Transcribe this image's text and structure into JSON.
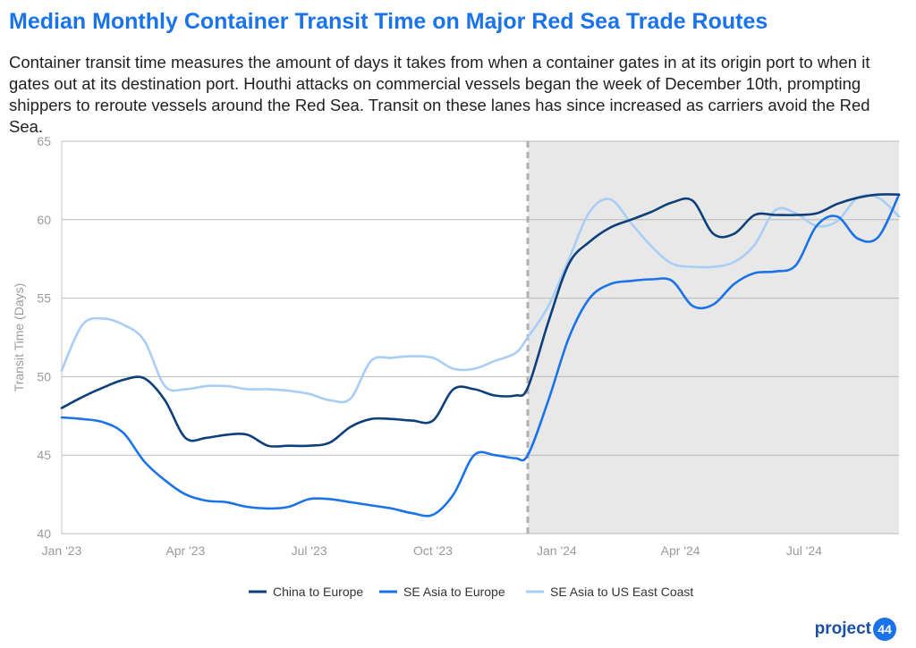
{
  "header": {
    "title": "Median Monthly Container Transit Time on Major Red Sea Trade Routes",
    "subtitle": "Container transit time measures the amount of days it takes from when a container gates in at its origin port to when it gates out at its destination port. Houthi attacks on commercial vessels began the week of December 10th, prompting shippers to reroute vessels around the Red Sea. Transit on these lanes has since increased as carriers avoid the Red Sea."
  },
  "brand": {
    "text": "project",
    "number": "44"
  },
  "chart_data": {
    "type": "line",
    "title": "Median Monthly Container Transit Time on Major Red Sea Trade Routes",
    "ylabel": "Transit Time (Days)",
    "ylim": [
      40,
      65
    ],
    "yticks": [
      40,
      45,
      50,
      55,
      60,
      65
    ],
    "xlim": [
      0,
      20.3
    ],
    "xticks": [
      {
        "x": 0,
        "label": "Jan '23"
      },
      {
        "x": 3,
        "label": "Apr '23"
      },
      {
        "x": 6,
        "label": "Jul '23"
      },
      {
        "x": 9,
        "label": "Oct '23"
      },
      {
        "x": 12,
        "label": "Jan '24"
      },
      {
        "x": 15,
        "label": "Apr '24"
      },
      {
        "x": 18,
        "label": "Jul '24"
      }
    ],
    "grid": true,
    "legend_position": "bottom-center",
    "annotation": {
      "x": 11.3,
      "style": "dashed vertical line",
      "shaded_region": [
        11.3,
        20.3
      ]
    },
    "series": [
      {
        "name": "China to Europe",
        "color": "#0d3f7a",
        "x": [
          0,
          0.5,
          1,
          1.5,
          2,
          2.5,
          3,
          3.5,
          4,
          4.5,
          5,
          5.5,
          6,
          6.5,
          7,
          7.5,
          8,
          8.5,
          9,
          9.5,
          10,
          10.5,
          11,
          11.3,
          11.8,
          12.3,
          12.8,
          13.3,
          13.8,
          14.3,
          14.8,
          15.3,
          15.8,
          16.3,
          16.8,
          17.3,
          17.8,
          18.3,
          18.8,
          19.3,
          19.8,
          20.3
        ],
        "y": [
          48,
          48.7,
          49.3,
          49.8,
          49.9,
          48.5,
          46.1,
          46.1,
          46.3,
          46.3,
          45.6,
          45.6,
          45.6,
          45.8,
          46.8,
          47.3,
          47.3,
          47.2,
          47.2,
          49.2,
          49.2,
          48.8,
          48.8,
          49.3,
          53.5,
          57.2,
          58.6,
          59.5,
          60,
          60.5,
          61.1,
          61.2,
          59.1,
          59.1,
          60.3,
          60.3,
          60.3,
          60.4,
          61,
          61.4,
          61.6,
          61.6
        ]
      },
      {
        "name": "SE Asia to Europe",
        "color": "#1a73e8",
        "x": [
          0,
          0.5,
          1,
          1.5,
          2,
          2.5,
          3,
          3.5,
          4,
          4.5,
          5,
          5.5,
          6,
          6.5,
          7,
          7.5,
          8,
          8.5,
          9,
          9.5,
          10,
          10.5,
          11,
          11.3,
          11.8,
          12.3,
          12.8,
          13.3,
          13.8,
          14.3,
          14.8,
          15.3,
          15.8,
          16.3,
          16.8,
          17.3,
          17.8,
          18.3,
          18.8,
          19.3,
          19.8,
          20.3
        ],
        "y": [
          47.4,
          47.3,
          47.1,
          46.4,
          44.6,
          43.4,
          42.5,
          42.1,
          42,
          41.7,
          41.6,
          41.7,
          42.2,
          42.2,
          42,
          41.8,
          41.6,
          41.3,
          41.2,
          42.5,
          45,
          45,
          44.8,
          45,
          48.5,
          52.5,
          55,
          55.9,
          56.1,
          56.2,
          56.1,
          54.5,
          54.6,
          55.9,
          56.6,
          56.7,
          57.1,
          59.6,
          60.2,
          58.8,
          58.9,
          61.6
        ]
      },
      {
        "name": "SE Asia to US East Coast",
        "color": "#a9cdf5",
        "x": [
          0,
          0.5,
          1,
          1.5,
          2,
          2.5,
          3,
          3.5,
          4,
          4.5,
          5,
          5.5,
          6,
          6.5,
          7,
          7.5,
          8,
          8.5,
          9,
          9.5,
          10,
          10.5,
          11,
          11.3,
          11.8,
          12.3,
          12.8,
          13.3,
          13.8,
          14.3,
          14.8,
          15.3,
          15.8,
          16.3,
          16.8,
          17.3,
          17.8,
          18.3,
          18.8,
          19.3,
          19.8,
          20.3
        ],
        "y": [
          50.4,
          53.3,
          53.7,
          53.3,
          52.3,
          49.4,
          49.2,
          49.4,
          49.4,
          49.2,
          49.2,
          49.1,
          48.9,
          48.5,
          48.6,
          51,
          51.2,
          51.3,
          51.2,
          50.5,
          50.5,
          51,
          51.5,
          52.5,
          54.5,
          57.5,
          60.5,
          61.3,
          59.8,
          58.3,
          57.2,
          57,
          57,
          57.3,
          58.4,
          60.6,
          60.4,
          59.6,
          59.9,
          61.4,
          61.4,
          60.2
        ]
      }
    ]
  }
}
